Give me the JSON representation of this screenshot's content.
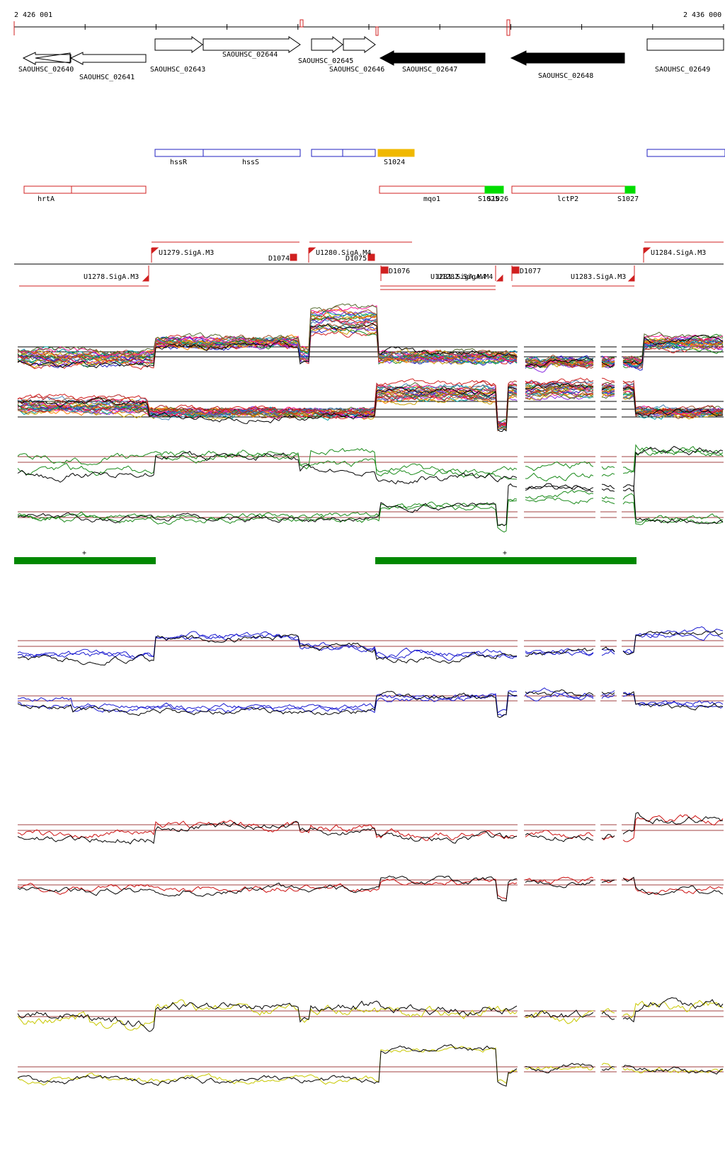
{
  "coords": {
    "start": "2 426 001",
    "end": "2 436 000"
  },
  "genes": [
    {
      "id": "SAOUHSC_02640",
      "filled": false
    },
    {
      "id": "SAOUHSC_02641",
      "filled": false
    },
    {
      "id": "SAOUHSC_02643",
      "filled": false
    },
    {
      "id": "SAOUHSC_02644",
      "filled": false
    },
    {
      "id": "SAOUHSC_02645",
      "filled": false
    },
    {
      "id": "SAOUHSC_02646",
      "filled": false
    },
    {
      "id": "SAOUHSC_02647",
      "filled": true
    },
    {
      "id": "SAOUHSC_02648",
      "filled": true
    },
    {
      "id": "SAOUHSC_02649",
      "filled": false
    }
  ],
  "blue_features": [
    "hssR",
    "hssS"
  ],
  "orange_features": [
    "S1024"
  ],
  "red_features": [
    "hrtA",
    "mqo1",
    "lctP2"
  ],
  "green_small_features": [
    "S1025",
    "S1026",
    "S1027"
  ],
  "tss_labels": [
    "U1278.SigA.M3",
    "U1279.SigA.M3",
    "U1280.SigA.M4",
    "U1281.SigA.M4",
    "U1282.SigA.M4",
    "U1283.SigA.M3",
    "U1284.SigA.M3"
  ],
  "downshift_labels": [
    "D1074",
    "D1075",
    "D1076",
    "D1077"
  ],
  "segments": [
    "+",
    "+"
  ],
  "colors": {
    "gene_outline": "#000000",
    "gene_filled": "#000000",
    "blue": "#2020c0",
    "orange": "#f0b800",
    "red": "#d02020",
    "green_small": "#00dd00",
    "segment": "#008800",
    "thresh": "#a04040",
    "track_green": "#1a8a1a",
    "track_blue": "#1a1ad0",
    "track_red": "#cc1010",
    "track_yellow": "#c8c800"
  }
}
